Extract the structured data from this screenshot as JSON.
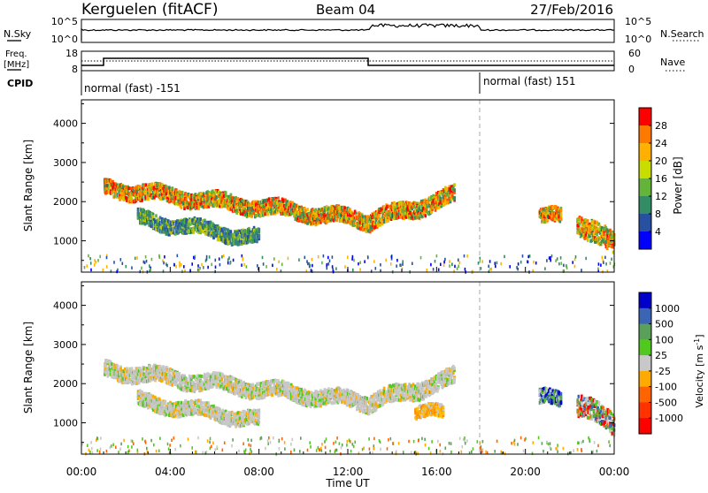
{
  "header": {
    "station": "Kerguelen (fitACF)",
    "beam": "Beam 04",
    "date": "27/Feb/2016"
  },
  "noise_panel": {
    "left_label": "N.Sky",
    "left_ticks": [
      "10^5",
      "10^0"
    ],
    "right_label": "N.Search",
    "right_ticks": [
      "10^5",
      "10^0"
    ]
  },
  "freq_panel": {
    "left_label_1": "Freq.",
    "left_label_2": "[MHz]",
    "left_ticks": [
      "18",
      "8"
    ],
    "right_label": "Nave",
    "right_ticks": [
      "60",
      "0"
    ]
  },
  "cpid_panel": {
    "label": "CPID",
    "modes": [
      {
        "text": "normal (fast) -151",
        "start_hour": 0
      },
      {
        "text": "normal (fast) 151",
        "start_hour": 18
      }
    ]
  },
  "chart_data": [
    {
      "type": "heatmap",
      "panel": "power",
      "ylabel": "Slant Range [km]",
      "xlabel": "",
      "x_range_hours": [
        0,
        24
      ],
      "ylim": [
        200,
        4600
      ],
      "y_ticks": [
        1000,
        2000,
        3000,
        4000
      ],
      "colorbar_label": "Power [dB]",
      "colorbar_ticks": [
        "28",
        "24",
        "20",
        "16",
        "12",
        "8",
        "4"
      ],
      "colorbar_colors": [
        "#ff0000",
        "#ff7800",
        "#ffb000",
        "#c8dc00",
        "#64b43c",
        "#328c64",
        "#2850a0",
        "#0000ff"
      ],
      "bands": [
        {
          "t0": 1.0,
          "t1": 13.0,
          "r0": 2400,
          "r1": 1550,
          "thickness": 280,
          "level": "high"
        },
        {
          "t0": 13.0,
          "t1": 16.8,
          "r0": 1550,
          "r1": 2200,
          "thickness": 300,
          "level": "high"
        },
        {
          "t0": 2.5,
          "t1": 8.0,
          "r0": 1600,
          "r1": 1100,
          "thickness": 260,
          "level": "low"
        },
        {
          "t0": 20.6,
          "t1": 21.6,
          "r0": 1650,
          "r1": 1650,
          "thickness": 260,
          "level": "high"
        },
        {
          "t0": 22.3,
          "t1": 24.0,
          "r0": 1500,
          "r1": 900,
          "thickness": 380,
          "level": "high"
        }
      ]
    },
    {
      "type": "heatmap",
      "panel": "velocity",
      "ylabel": "Slant Range [km]",
      "xlabel": "Time UT",
      "x_range_hours": [
        0,
        24
      ],
      "ylim": [
        200,
        4600
      ],
      "y_ticks": [
        1000,
        2000,
        3000,
        4000
      ],
      "x_ticks": [
        "00:00",
        "04:00",
        "08:00",
        "12:00",
        "16:00",
        "20:00",
        "00:00"
      ],
      "colorbar_label": "Velocity [m s",
      "colorbar_label_exp": "-1",
      "colorbar_ticks": [
        "1000",
        "500",
        "100",
        "25",
        "-25",
        "-100",
        "-500",
        "-1000"
      ],
      "colorbar_colors": [
        "#0000c8",
        "#3c64b4",
        "#5aa05a",
        "#50c81e",
        "#c8c8c8",
        "#ffaa00",
        "#ff6400",
        "#ff3200",
        "#ff0000"
      ],
      "bands": [
        {
          "t0": 1.0,
          "t1": 13.0,
          "r0": 2400,
          "r1": 1550,
          "thickness": 280,
          "level": "grey"
        },
        {
          "t0": 13.0,
          "t1": 16.8,
          "r0": 1550,
          "r1": 2200,
          "thickness": 300,
          "level": "grey"
        },
        {
          "t0": 2.5,
          "t1": 8.0,
          "r0": 1600,
          "r1": 1100,
          "thickness": 260,
          "level": "grey"
        },
        {
          "t0": 15.0,
          "t1": 16.3,
          "r0": 1300,
          "r1": 1300,
          "thickness": 220,
          "level": "orange"
        },
        {
          "t0": 20.6,
          "t1": 21.6,
          "r0": 1650,
          "r1": 1650,
          "thickness": 260,
          "level": "blue"
        },
        {
          "t0": 22.3,
          "t1": 24.0,
          "r0": 1500,
          "r1": 1000,
          "thickness": 380,
          "level": "mixed"
        }
      ]
    }
  ]
}
